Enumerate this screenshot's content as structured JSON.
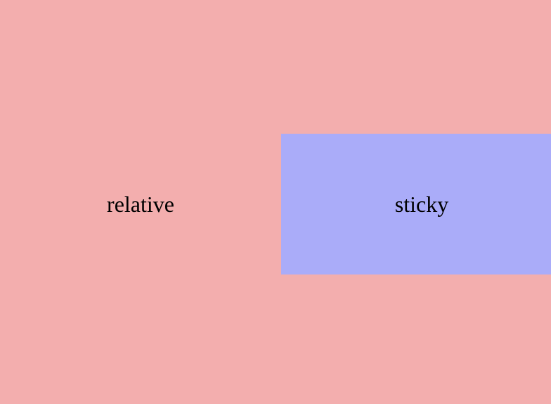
{
  "relative": {
    "label": "relative",
    "background": "#f3aeae"
  },
  "sticky": {
    "label": "sticky",
    "background": "#aaacf9"
  }
}
